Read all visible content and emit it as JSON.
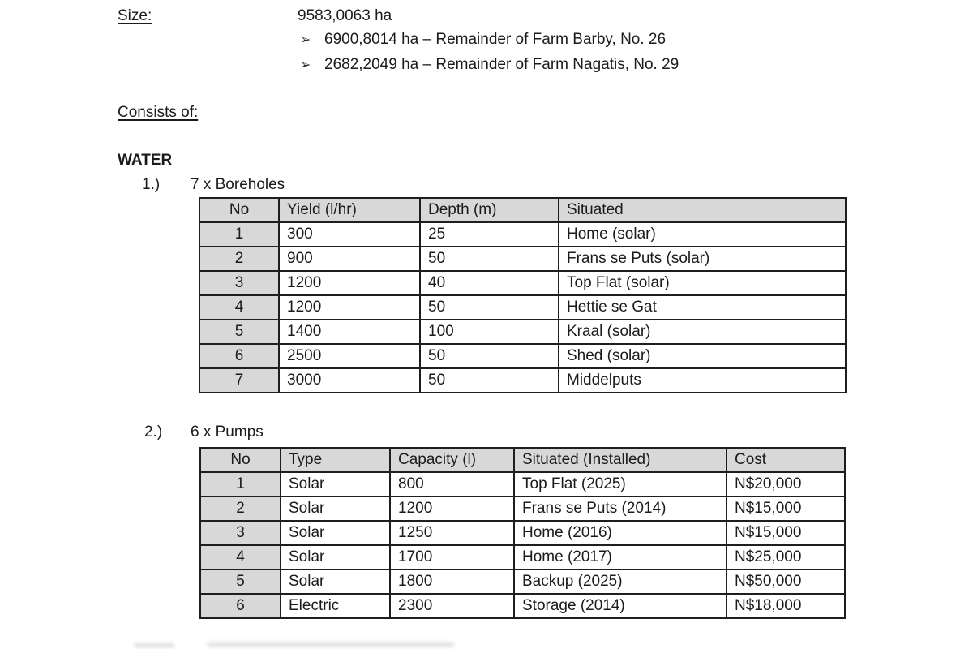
{
  "doc": {
    "size_label": "Size:",
    "size_value": "9583,0063 ha",
    "size_items": [
      {
        "bullet": "➢",
        "text": "6900,8014 ha – Remainder of Farm Barby, No. 26"
      },
      {
        "bullet": "➢",
        "text": "2682,2049 ha – Remainder of Farm Nagatis, No. 29"
      }
    ],
    "consists_label": "Consists of:",
    "section_heading": "WATER",
    "items": [
      {
        "number": "1.)",
        "title": "7 x Boreholes"
      },
      {
        "number": "2.)",
        "title": "6 x Pumps"
      }
    ]
  },
  "tables": {
    "boreholes": {
      "headers": [
        "No",
        "Yield (l/hr)",
        "Depth (m)",
        "Situated"
      ],
      "rows": [
        [
          "1",
          "300",
          "25",
          "Home (solar)"
        ],
        [
          "2",
          "900",
          "50",
          "Frans se Puts (solar)"
        ],
        [
          "3",
          "1200",
          "40",
          "Top Flat (solar)"
        ],
        [
          "4",
          "1200",
          "50",
          "Hettie se Gat"
        ],
        [
          "5",
          "1400",
          "100",
          "Kraal (solar)"
        ],
        [
          "6",
          "2500",
          "50",
          "Shed (solar)"
        ],
        [
          "7",
          "3000",
          "50",
          "Middelputs"
        ]
      ]
    },
    "pumps": {
      "headers": [
        "No",
        "Type",
        "Capacity (l)",
        "Situated (Installed)",
        "Cost"
      ],
      "rows": [
        [
          "1",
          "Solar",
          "800",
          "Top Flat (2025)",
          "N$20,000"
        ],
        [
          "2",
          "Solar",
          "1200",
          "Frans se Puts (2014)",
          "N$15,000"
        ],
        [
          "3",
          "Solar",
          "1250",
          "Home (2016)",
          "N$15,000"
        ],
        [
          "4",
          "Solar",
          "1700",
          "Home (2017)",
          "N$25,000"
        ],
        [
          "5",
          "Solar",
          "1800",
          "Backup (2025)",
          "N$50,000"
        ],
        [
          "6",
          "Electric",
          "2300",
          "Storage (2014)",
          "N$18,000"
        ]
      ]
    }
  },
  "colors": {
    "table_header_bg": "#d8d8d8",
    "table_border": "#1e1e1e",
    "text": "#1b1b1b",
    "page_bg": "#ffffff"
  }
}
